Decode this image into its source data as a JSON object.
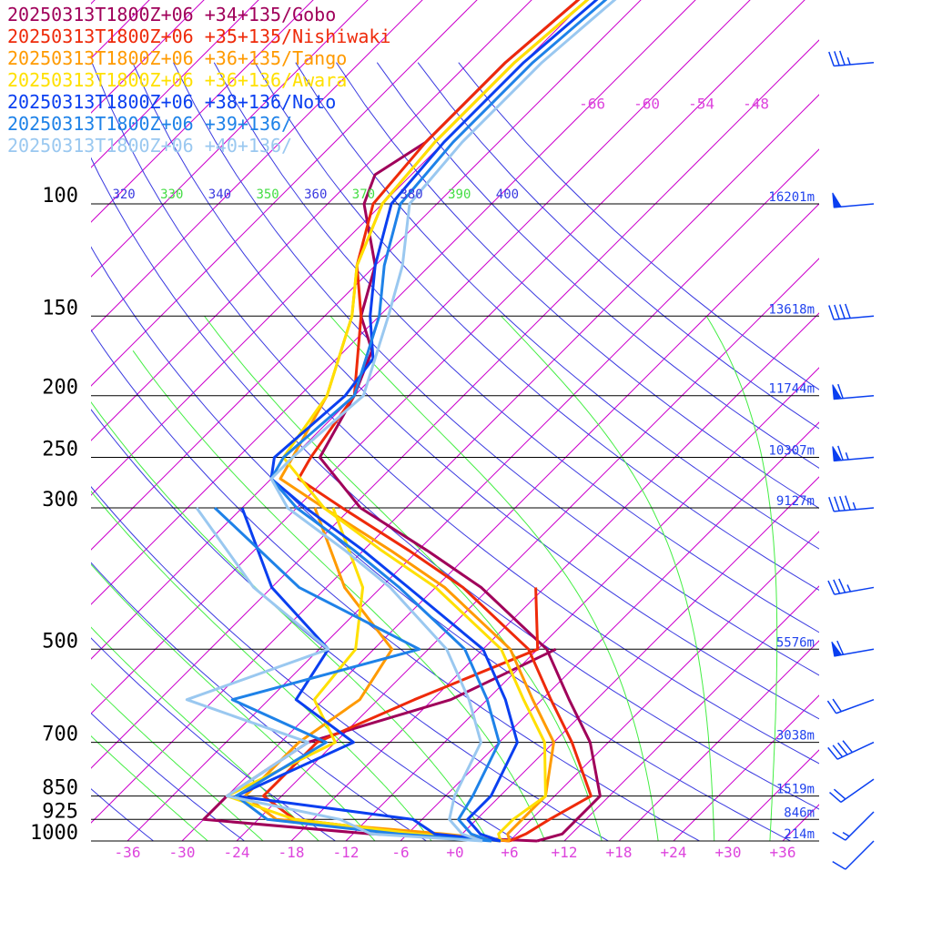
{
  "chart_data": {
    "type": "line",
    "subtype": "skew-t log-p sounding",
    "legend": {
      "placement": "top-left",
      "entries": [
        {
          "label": "20250313T1800Z+06 +34+135/Gobo",
          "color": "#a0005a"
        },
        {
          "label": "20250313T1800Z+06 +35+135/Nishiwaki",
          "color": "#ee2a0a"
        },
        {
          "label": "20250313T1800Z+06 +36+135/Tango",
          "color": "#ff9a00"
        },
        {
          "label": "20250313T1800Z+06 +36+136/Awara",
          "color": "#ffe000"
        },
        {
          "label": "20250313T1800Z+06 +38+136/Noto",
          "color": "#0a3ff0"
        },
        {
          "label": "20250313T1800Z+06 +39+136/",
          "color": "#1e82e8"
        },
        {
          "label": "20250313T1800Z+06 +40+136/",
          "color": "#9ac8f0"
        }
      ]
    },
    "y_axis": {
      "scale": "log-pressure",
      "ylim_hPa": [
        1000,
        100
      ],
      "ticks": [
        {
          "p": 100,
          "label": "100",
          "height": "16201m"
        },
        {
          "p": 150,
          "label": "150",
          "height": "13618m"
        },
        {
          "p": 200,
          "label": "200",
          "height": "11744m"
        },
        {
          "p": 250,
          "label": "250",
          "height": "10307m"
        },
        {
          "p": 300,
          "label": "300",
          "height": "9127m"
        },
        {
          "p": 500,
          "label": "500",
          "height": "5576m"
        },
        {
          "p": 700,
          "label": "700",
          "height": "3038m"
        },
        {
          "p": 850,
          "label": "850",
          "height": "1519m"
        },
        {
          "p": 925,
          "label": "925",
          "height": "846m"
        },
        {
          "p": 1000,
          "label": "1000",
          "height": "214m"
        }
      ]
    },
    "x_axis": {
      "quantity": "temperature (°C, skewed)",
      "xlim_C": [
        -40,
        40
      ],
      "ticks": [
        "-36",
        "-30",
        "-24",
        "-18",
        "-12",
        "-6",
        "+0",
        "+6",
        "+12",
        "+18",
        "+24",
        "+30",
        "+36"
      ],
      "upper_ticks": [
        "-66",
        "-60",
        "-54",
        "-48"
      ]
    },
    "theta_labels": [
      "320",
      "330",
      "340",
      "350",
      "360",
      "370",
      "380",
      "390",
      "400"
    ],
    "series": [
      {
        "name": "20250313T1800Z+06 +34+135/Gobo",
        "color": "#a0005a",
        "temperature": [
          [
            1000,
            9
          ],
          [
            975,
            11
          ],
          [
            925,
            11
          ],
          [
            850,
            11
          ],
          [
            700,
            4
          ],
          [
            600,
            -3
          ],
          [
            500,
            -11
          ],
          [
            400,
            -25
          ],
          [
            350,
            -35
          ],
          [
            300,
            -47
          ],
          [
            250,
            -57
          ],
          [
            200,
            -60
          ],
          [
            170,
            -63
          ],
          [
            150,
            -68
          ],
          [
            125,
            -72
          ],
          [
            100,
            -80
          ],
          [
            90,
            -82
          ],
          [
            80,
            -80
          ],
          [
            60,
            -80
          ],
          [
            40,
            -78
          ],
          [
            30,
            -79
          ]
        ],
        "dewpoint": [
          [
            1000,
            9
          ],
          [
            975,
            -10
          ],
          [
            925,
            -30
          ],
          [
            850,
            -30
          ],
          [
            700,
            -27
          ],
          [
            600,
            -16
          ],
          [
            500,
            -10
          ]
        ]
      },
      {
        "name": "20250313T1800Z+06 +35+135/Nishiwaki",
        "color": "#ee2a0a",
        "temperature": [
          [
            1000,
            6
          ],
          [
            975,
            7
          ],
          [
            925,
            8
          ],
          [
            850,
            10
          ],
          [
            700,
            2
          ],
          [
            600,
            -5
          ],
          [
            500,
            -13
          ],
          [
            400,
            -27
          ],
          [
            350,
            -37
          ],
          [
            300,
            -49
          ],
          [
            270,
            -57
          ],
          [
            250,
            -58
          ],
          [
            200,
            -60
          ],
          [
            150,
            -68
          ],
          [
            125,
            -74
          ],
          [
            100,
            -79
          ],
          [
            80,
            -80
          ],
          [
            60,
            -80
          ],
          [
            40,
            -78
          ],
          [
            30,
            -79
          ]
        ],
        "dewpoint": [
          [
            1000,
            6
          ],
          [
            975,
            -5
          ],
          [
            925,
            -20
          ],
          [
            850,
            -26
          ],
          [
            700,
            -26
          ],
          [
            600,
            -20
          ],
          [
            500,
            -12
          ],
          [
            400,
            -19
          ]
        ]
      },
      {
        "name": "20250313T1800Z+06 +36+135/Tango",
        "color": "#ff9a00",
        "temperature": [
          [
            1000,
            6
          ],
          [
            975,
            5
          ],
          [
            925,
            5
          ],
          [
            850,
            5
          ],
          [
            700,
            0
          ],
          [
            600,
            -7
          ],
          [
            500,
            -15
          ],
          [
            400,
            -29
          ],
          [
            350,
            -39
          ],
          [
            300,
            -51
          ],
          [
            270,
            -59
          ],
          [
            250,
            -60
          ],
          [
            200,
            -63
          ],
          [
            150,
            -69
          ],
          [
            125,
            -74
          ],
          [
            100,
            -78
          ],
          [
            80,
            -79
          ],
          [
            60,
            -79
          ],
          [
            40,
            -77
          ],
          [
            30,
            -78
          ]
        ],
        "dewpoint": [
          [
            1000,
            6
          ],
          [
            975,
            -2
          ],
          [
            925,
            -22
          ],
          [
            850,
            -28
          ],
          [
            700,
            -28
          ],
          [
            600,
            -26
          ],
          [
            500,
            -28
          ],
          [
            400,
            -40
          ],
          [
            300,
            -52
          ]
        ]
      },
      {
        "name": "20250313T1800Z+06 +36+136/Awara",
        "color": "#ffe000",
        "temperature": [
          [
            1000,
            5
          ],
          [
            975,
            4
          ],
          [
            925,
            4
          ],
          [
            850,
            5
          ],
          [
            700,
            -1
          ],
          [
            600,
            -8
          ],
          [
            500,
            -16
          ],
          [
            400,
            -30
          ],
          [
            350,
            -40
          ],
          [
            300,
            -51
          ],
          [
            250,
            -61
          ],
          [
            200,
            -63
          ],
          [
            150,
            -69
          ],
          [
            125,
            -74
          ],
          [
            100,
            -78
          ],
          [
            80,
            -79
          ],
          [
            60,
            -79
          ],
          [
            40,
            -77
          ],
          [
            30,
            -78
          ]
        ],
        "dewpoint": [
          [
            1000,
            5
          ],
          [
            975,
            -5
          ],
          [
            925,
            -20
          ],
          [
            850,
            -30
          ],
          [
            700,
            -24
          ],
          [
            600,
            -31
          ],
          [
            500,
            -32
          ],
          [
            400,
            -38
          ],
          [
            300,
            -50
          ]
        ]
      },
      {
        "name": "20250313T1800Z+06 +38+136/Noto",
        "color": "#0a3ff0",
        "temperature": [
          [
            1000,
            5
          ],
          [
            975,
            2
          ],
          [
            925,
            -1
          ],
          [
            850,
            -1
          ],
          [
            700,
            -4
          ],
          [
            600,
            -10
          ],
          [
            500,
            -18
          ],
          [
            400,
            -33
          ],
          [
            350,
            -42
          ],
          [
            300,
            -53
          ],
          [
            270,
            -60
          ],
          [
            250,
            -62
          ],
          [
            200,
            -61
          ],
          [
            175,
            -62
          ],
          [
            150,
            -67
          ],
          [
            125,
            -72
          ],
          [
            100,
            -77
          ],
          [
            80,
            -78
          ],
          [
            60,
            -78
          ],
          [
            40,
            -76
          ],
          [
            30,
            -77
          ]
        ],
        "dewpoint": [
          [
            1000,
            5
          ],
          [
            975,
            -3
          ],
          [
            925,
            -7
          ],
          [
            850,
            -29
          ],
          [
            700,
            -22
          ],
          [
            600,
            -33
          ],
          [
            500,
            -35
          ],
          [
            400,
            -48
          ],
          [
            300,
            -60
          ]
        ]
      },
      {
        "name": "20250313T1800Z+06 +39+136/",
        "color": "#1e82e8",
        "temperature": [
          [
            1000,
            4
          ],
          [
            975,
            1
          ],
          [
            925,
            -2
          ],
          [
            850,
            -3
          ],
          [
            700,
            -6
          ],
          [
            600,
            -12
          ],
          [
            500,
            -20
          ],
          [
            400,
            -34
          ],
          [
            350,
            -43
          ],
          [
            300,
            -54
          ],
          [
            270,
            -60
          ],
          [
            250,
            -61
          ],
          [
            200,
            -60
          ],
          [
            150,
            -66
          ],
          [
            125,
            -71
          ],
          [
            100,
            -76
          ],
          [
            80,
            -77
          ],
          [
            60,
            -77
          ],
          [
            40,
            -75
          ],
          [
            30,
            -76
          ]
        ],
        "dewpoint": [
          [
            1000,
            4
          ],
          [
            975,
            -7
          ],
          [
            925,
            -23
          ],
          [
            850,
            -29
          ],
          [
            700,
            -25
          ],
          [
            600,
            -40
          ],
          [
            500,
            -25
          ],
          [
            400,
            -45
          ],
          [
            300,
            -63
          ]
        ]
      },
      {
        "name": "20250313T1800Z+06 +40+136/",
        "color": "#9ac8f0",
        "temperature": [
          [
            1000,
            3
          ],
          [
            975,
            0
          ],
          [
            925,
            -3
          ],
          [
            850,
            -5
          ],
          [
            700,
            -8
          ],
          [
            600,
            -14
          ],
          [
            500,
            -22
          ],
          [
            400,
            -35
          ],
          [
            350,
            -44
          ],
          [
            300,
            -55
          ],
          [
            270,
            -60
          ],
          [
            250,
            -60
          ],
          [
            200,
            -59
          ],
          [
            150,
            -65
          ],
          [
            125,
            -69
          ],
          [
            100,
            -75
          ],
          [
            80,
            -76
          ],
          [
            60,
            -76
          ],
          [
            40,
            -74
          ],
          [
            30,
            -75
          ]
        ],
        "dewpoint": [
          [
            1000,
            3
          ],
          [
            975,
            -10
          ],
          [
            925,
            -15
          ],
          [
            850,
            -30
          ],
          [
            700,
            -27
          ],
          [
            600,
            -45
          ],
          [
            500,
            -35
          ],
          [
            400,
            -50
          ],
          [
            300,
            -65
          ]
        ]
      }
    ],
    "wind_barbs": [
      {
        "p": 30,
        "speed_kt": 10,
        "dir_deg": 255
      },
      {
        "p": 60,
        "speed_kt": 35,
        "dir_deg": 265
      },
      {
        "p": 100,
        "speed_kt": 50,
        "dir_deg": 265
      },
      {
        "p": 150,
        "speed_kt": 40,
        "dir_deg": 265
      },
      {
        "p": 200,
        "speed_kt": 60,
        "dir_deg": 265
      },
      {
        "p": 250,
        "speed_kt": 65,
        "dir_deg": 265
      },
      {
        "p": 300,
        "speed_kt": 45,
        "dir_deg": 265
      },
      {
        "p": 400,
        "speed_kt": 35,
        "dir_deg": 260
      },
      {
        "p": 500,
        "speed_kt": 60,
        "dir_deg": 260
      },
      {
        "p": 600,
        "speed_kt": 20,
        "dir_deg": 250
      },
      {
        "p": 700,
        "speed_kt": 40,
        "dir_deg": 245
      },
      {
        "p": 800,
        "speed_kt": 20,
        "dir_deg": 235
      },
      {
        "p": 900,
        "speed_kt": 15,
        "dir_deg": 225
      },
      {
        "p": 1000,
        "speed_kt": 10,
        "dir_deg": 225
      }
    ],
    "colors": {
      "isotherm": "#cc00cc",
      "dry_adiabat": "#3a3ae0",
      "moist_adiabat": "#44ee44",
      "isobar": "#000000",
      "height_label": "#2244ee",
      "pressure_label": "#000000",
      "temperature_label": "#dd44dd",
      "wind_barb": "#0a3ff0"
    }
  }
}
